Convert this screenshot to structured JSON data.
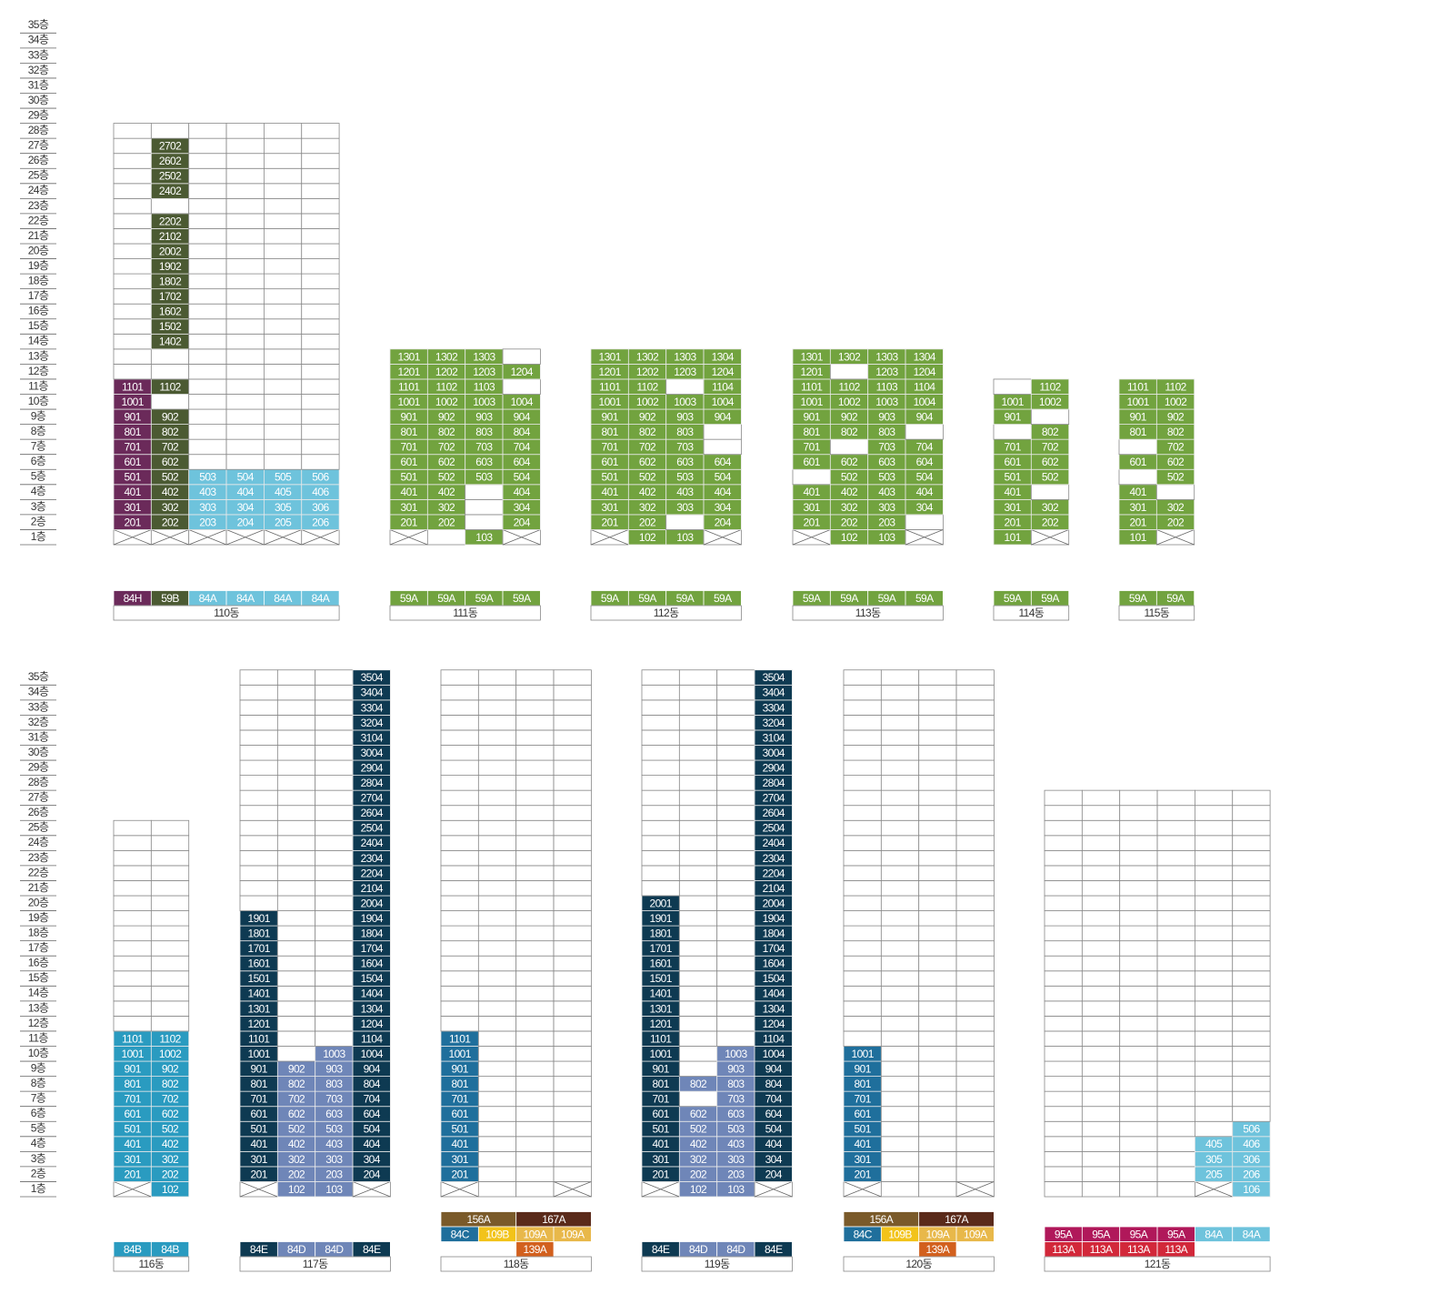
{
  "floor_labels": [
    "1층",
    "2층",
    "3층",
    "4층",
    "5층",
    "6층",
    "7층",
    "8층",
    "9층",
    "10층",
    "11층",
    "12층",
    "13층",
    "14층",
    "15층",
    "16층",
    "17층",
    "18층",
    "19층",
    "20층",
    "21층",
    "22층",
    "23층",
    "24층",
    "25층",
    "26층",
    "27층",
    "28층",
    "29층",
    "30층",
    "31층",
    "32층",
    "33층",
    "34층",
    "35층"
  ],
  "blocks": [
    {
      "name": "110동",
      "floors": 28,
      "pilotis": [
        0,
        1,
        2,
        3,
        4,
        5
      ],
      "columns": [
        {
          "color": "#6b2a5a",
          "units": [
            null,
            "201",
            "301",
            "401",
            "501",
            "601",
            "701",
            "801",
            "901",
            "1001",
            "1101"
          ]
        },
        {
          "color": "#4b5a32",
          "units": [
            null,
            "202",
            "302",
            "402",
            "502",
            "602",
            "702",
            "802",
            "902",
            null,
            "1102",
            null,
            null,
            "1402",
            "1502",
            "1602",
            "1702",
            "1802",
            "1902",
            "2002",
            "2102",
            "2202",
            null,
            "2402",
            "2502",
            "2602",
            "2702"
          ]
        },
        {
          "color": "#6ec3dc",
          "units": [
            null,
            "203",
            "303",
            "403",
            "503"
          ]
        },
        {
          "color": "#6ec3dc",
          "units": [
            null,
            "204",
            "304",
            "404",
            "504"
          ]
        },
        {
          "color": "#6ec3dc",
          "units": [
            null,
            "205",
            "305",
            "405",
            "505"
          ]
        },
        {
          "color": "#6ec3dc",
          "units": [
            null,
            "206",
            "306",
            "406",
            "506"
          ]
        }
      ],
      "types": [
        [
          {
            "label": "84H",
            "color": "#6b2a5a"
          },
          {
            "label": "59B",
            "color": "#4b5a32"
          },
          {
            "label": "84A",
            "color": "#6ec3dc"
          },
          {
            "label": "84A",
            "color": "#6ec3dc"
          },
          {
            "label": "84A",
            "color": "#6ec3dc"
          },
          {
            "label": "84A",
            "color": "#6ec3dc"
          }
        ]
      ]
    },
    {
      "name": "111동",
      "floors": 13,
      "pilotis": [
        0,
        3
      ],
      "columns": [
        {
          "color": "#72a33f",
          "units": [
            null,
            "201",
            "301",
            "401",
            "501",
            "601",
            "701",
            "801",
            "901",
            "1001",
            "1101",
            "1201",
            "1301"
          ]
        },
        {
          "color": "#72a33f",
          "units": [
            null,
            "202",
            "302",
            "402",
            "502",
            "602",
            "702",
            "802",
            "902",
            "1002",
            "1102",
            "1202",
            "1302"
          ]
        },
        {
          "color": "#72a33f",
          "units": [
            "103",
            null,
            null,
            null,
            "503",
            "603",
            "703",
            "803",
            "903",
            "1003",
            "1103",
            "1203",
            "1303"
          ]
        },
        {
          "color": "#72a33f",
          "units": [
            null,
            "204",
            "304",
            "404",
            "504",
            "604",
            "704",
            "804",
            "904",
            "1004",
            null,
            "1204"
          ]
        }
      ],
      "types": [
        [
          {
            "label": "59A",
            "color": "#72a33f"
          },
          {
            "label": "59A",
            "color": "#72a33f"
          },
          {
            "label": "59A",
            "color": "#72a33f"
          },
          {
            "label": "59A",
            "color": "#72a33f"
          }
        ]
      ]
    },
    {
      "name": "112동",
      "floors": 13,
      "pilotis": [
        0,
        3
      ],
      "columns": [
        {
          "color": "#72a33f",
          "units": [
            null,
            "201",
            "301",
            "401",
            "501",
            "601",
            "701",
            "801",
            "901",
            "1001",
            "1101",
            "1201",
            "1301"
          ]
        },
        {
          "color": "#72a33f",
          "units": [
            "102",
            "202",
            "302",
            "402",
            "502",
            "602",
            "702",
            "802",
            "902",
            "1002",
            "1102",
            "1202",
            "1302"
          ]
        },
        {
          "color": "#72a33f",
          "units": [
            "103",
            null,
            "303",
            "403",
            "503",
            "603",
            "703",
            "803",
            "903",
            "1003",
            null,
            "1203",
            "1303"
          ]
        },
        {
          "color": "#72a33f",
          "units": [
            null,
            "204",
            "304",
            "404",
            "504",
            "604",
            null,
            null,
            "904",
            "1004",
            "1104",
            "1204",
            "1304"
          ]
        }
      ],
      "types": [
        [
          {
            "label": "59A",
            "color": "#72a33f"
          },
          {
            "label": "59A",
            "color": "#72a33f"
          },
          {
            "label": "59A",
            "color": "#72a33f"
          },
          {
            "label": "59A",
            "color": "#72a33f"
          }
        ]
      ]
    },
    {
      "name": "113동",
      "floors": 13,
      "pilotis": [
        0,
        3
      ],
      "columns": [
        {
          "color": "#72a33f",
          "units": [
            null,
            "201",
            "301",
            "401",
            null,
            "601",
            "701",
            "801",
            "901",
            "1001",
            "1101",
            "1201",
            "1301"
          ]
        },
        {
          "color": "#72a33f",
          "units": [
            "102",
            "202",
            "302",
            "402",
            "502",
            "602",
            null,
            "802",
            "902",
            "1002",
            "1102",
            null,
            "1302"
          ]
        },
        {
          "color": "#72a33f",
          "units": [
            "103",
            "203",
            "303",
            "403",
            "503",
            "603",
            "703",
            "803",
            "903",
            "1003",
            "1103",
            "1203",
            "1303"
          ]
        },
        {
          "color": "#72a33f",
          "units": [
            null,
            null,
            "304",
            "404",
            "504",
            "604",
            "704",
            null,
            "904",
            "1004",
            "1104",
            "1204",
            "1304"
          ]
        }
      ],
      "types": [
        [
          {
            "label": "59A",
            "color": "#72a33f"
          },
          {
            "label": "59A",
            "color": "#72a33f"
          },
          {
            "label": "59A",
            "color": "#72a33f"
          },
          {
            "label": "59A",
            "color": "#72a33f"
          }
        ]
      ]
    },
    {
      "name": "114동",
      "floors": 11,
      "pilotis": [
        1
      ],
      "columns": [
        {
          "color": "#72a33f",
          "units": [
            "101",
            "201",
            "301",
            "401",
            "501",
            "601",
            "701",
            null,
            "901",
            "1001"
          ]
        },
        {
          "color": "#72a33f",
          "units": [
            null,
            "202",
            "302",
            null,
            "502",
            "602",
            "702",
            "802",
            null,
            "1002",
            "1102"
          ]
        }
      ],
      "types": [
        [
          {
            "label": "59A",
            "color": "#72a33f"
          },
          {
            "label": "59A",
            "color": "#72a33f"
          }
        ]
      ]
    },
    {
      "name": "115동",
      "floors": 11,
      "pilotis": [
        1
      ],
      "columns": [
        {
          "color": "#72a33f",
          "units": [
            "101",
            "201",
            "301",
            "401",
            null,
            "601",
            null,
            "801",
            "901",
            "1001",
            "1101"
          ]
        },
        {
          "color": "#72a33f",
          "units": [
            null,
            "202",
            "302",
            null,
            "502",
            "602",
            "702",
            "802",
            "902",
            "1002",
            "1102"
          ]
        }
      ],
      "types": [
        [
          {
            "label": "59A",
            "color": "#72a33f"
          },
          {
            "label": "59A",
            "color": "#72a33f"
          }
        ]
      ]
    },
    {
      "name": "116동",
      "floors": 25,
      "pilotis": [
        0
      ],
      "columns": [
        {
          "color": "#2a9bc0",
          "units": [
            null,
            "201",
            "301",
            "401",
            "501",
            "601",
            "701",
            "801",
            "901",
            "1001",
            "1101"
          ]
        },
        {
          "color": "#2a9bc0",
          "units": [
            "102",
            "202",
            "302",
            "402",
            "502",
            "602",
            "702",
            "802",
            "902",
            "1002",
            "1102"
          ]
        }
      ],
      "types": [
        [
          {
            "label": "84B",
            "color": "#2a9bc0"
          },
          {
            "label": "84B",
            "color": "#2a9bc0"
          }
        ]
      ]
    },
    {
      "name": "117동",
      "floors": 35,
      "pilotis": [
        0,
        3
      ],
      "columns": [
        {
          "color": "#0e3a52",
          "units": [
            null,
            "201",
            "301",
            "401",
            "501",
            "601",
            "701",
            "801",
            "901",
            "1001",
            "1101",
            "1201",
            "1301",
            "1401",
            "1501",
            "1601",
            "1701",
            "1801",
            "1901"
          ]
        },
        {
          "color": "#6f86b8",
          "units": [
            "102",
            "202",
            "302",
            "402",
            "502",
            "602",
            "702",
            "802",
            "902"
          ]
        },
        {
          "color": "#6f86b8",
          "units": [
            "103",
            "203",
            "303",
            "403",
            "503",
            "603",
            "703",
            "803",
            "903",
            "1003"
          ]
        },
        {
          "color": "#0e3a52",
          "units": [
            null,
            "204",
            "304",
            "404",
            "504",
            "604",
            "704",
            "804",
            "904",
            "1004",
            "1104",
            "1204",
            "1304",
            "1404",
            "1504",
            "1604",
            "1704",
            "1804",
            "1904",
            "2004",
            "2104",
            "2204",
            "2304",
            "2404",
            "2504",
            "2604",
            "2704",
            "2804",
            "2904",
            "3004",
            "3104",
            "3204",
            "3304",
            "3404",
            "3504"
          ]
        }
      ],
      "types": [
        [
          {
            "label": "84E",
            "color": "#0e3a52"
          },
          {
            "label": "84D",
            "color": "#6f86b8"
          },
          {
            "label": "84D",
            "color": "#6f86b8"
          },
          {
            "label": "84E",
            "color": "#0e3a52"
          }
        ]
      ]
    },
    {
      "name": "118동",
      "floors": 35,
      "pilotis": [
        0,
        3
      ],
      "columns": [
        {
          "color": "#1f6f9c",
          "units": [
            null,
            "201",
            "301",
            "401",
            "501",
            "601",
            "701",
            "801",
            "901",
            "1001",
            "1101"
          ]
        },
        {
          "units": []
        },
        {
          "units": []
        },
        {
          "units": []
        }
      ],
      "types": [
        [
          {
            "label": "156A",
            "color": "#7a5a2a",
            "span": 2
          },
          {
            "label": "167A",
            "color": "#5a2a1a",
            "span": 2
          }
        ],
        [
          {
            "label": "84C",
            "color": "#1f6f9c"
          },
          {
            "label": "109B",
            "color": "#f2c31a"
          },
          {
            "label": "109A",
            "color": "#e8b84a"
          },
          {
            "label": "109A",
            "color": "#e8b84a"
          }
        ],
        [
          null,
          null,
          {
            "label": "139A",
            "color": "#d2601e"
          },
          null
        ]
      ]
    },
    {
      "name": "119동",
      "floors": 35,
      "pilotis": [
        0,
        3
      ],
      "columns": [
        {
          "color": "#0e3a52",
          "units": [
            null,
            "201",
            "301",
            "401",
            "501",
            "601",
            "701",
            "801",
            "901",
            "1001",
            "1101",
            "1201",
            "1301",
            "1401",
            "1501",
            "1601",
            "1701",
            "1801",
            "1901",
            "2001"
          ]
        },
        {
          "color": "#6f86b8",
          "units": [
            "102",
            "202",
            "302",
            "402",
            "502",
            "602",
            null,
            "802"
          ]
        },
        {
          "color": "#6f86b8",
          "units": [
            "103",
            "203",
            "303",
            "403",
            "503",
            "603",
            "703",
            "803",
            "903",
            "1003"
          ]
        },
        {
          "color": "#0e3a52",
          "units": [
            null,
            "204",
            "304",
            "404",
            "504",
            "604",
            "704",
            "804",
            "904",
            "1004",
            "1104",
            "1204",
            "1304",
            "1404",
            "1504",
            "1604",
            "1704",
            "1804",
            "1904",
            "2004",
            "2104",
            "2204",
            "2304",
            "2404",
            "2504",
            "2604",
            "2704",
            "2804",
            "2904",
            "3004",
            "3104",
            "3204",
            "3304",
            "3404",
            "3504"
          ]
        }
      ],
      "types": [
        [
          {
            "label": "84E",
            "color": "#0e3a52"
          },
          {
            "label": "84D",
            "color": "#6f86b8"
          },
          {
            "label": "84D",
            "color": "#6f86b8"
          },
          {
            "label": "84E",
            "color": "#0e3a52"
          }
        ]
      ]
    },
    {
      "name": "120동",
      "floors": 35,
      "pilotis": [
        0,
        3
      ],
      "columns": [
        {
          "color": "#1f6f9c",
          "units": [
            null,
            "201",
            "301",
            "401",
            "501",
            "601",
            "701",
            "801",
            "901",
            "1001"
          ]
        },
        {
          "units": []
        },
        {
          "units": []
        },
        {
          "units": []
        }
      ],
      "types": [
        [
          {
            "label": "156A",
            "color": "#7a5a2a",
            "span": 2
          },
          {
            "label": "167A",
            "color": "#5a2a1a",
            "span": 2
          }
        ],
        [
          {
            "label": "84C",
            "color": "#1f6f9c"
          },
          {
            "label": "109B",
            "color": "#f2c31a"
          },
          {
            "label": "109A",
            "color": "#e8b84a"
          },
          {
            "label": "109A",
            "color": "#e8b84a"
          }
        ],
        [
          null,
          null,
          {
            "label": "139A",
            "color": "#d2601e"
          },
          null
        ]
      ]
    },
    {
      "name": "121동",
      "floors": 27,
      "pilotis": [
        4
      ],
      "columns": [
        {
          "units": []
        },
        {
          "units": []
        },
        {
          "units": []
        },
        {
          "units": []
        },
        {
          "color": "#6ec3dc",
          "units": [
            null,
            "205",
            "305",
            "405"
          ]
        },
        {
          "color": "#6ec3dc",
          "units": [
            "106",
            "206",
            "306",
            "406",
            "506"
          ]
        }
      ],
      "types": [
        [
          {
            "label": "95A",
            "color": "#b0185a"
          },
          {
            "label": "95A",
            "color": "#b0185a"
          },
          {
            "label": "95A",
            "color": "#b0185a"
          },
          {
            "label": "95A",
            "color": "#b0185a"
          },
          {
            "label": "84A",
            "color": "#6ec3dc"
          },
          {
            "label": "84A",
            "color": "#6ec3dc"
          }
        ],
        [
          {
            "label": "113A",
            "color": "#d2283a"
          },
          {
            "label": "113A",
            "color": "#d2283a"
          },
          {
            "label": "113A",
            "color": "#d2283a"
          },
          {
            "label": "113A",
            "color": "#d2283a"
          },
          null,
          null
        ]
      ]
    }
  ]
}
